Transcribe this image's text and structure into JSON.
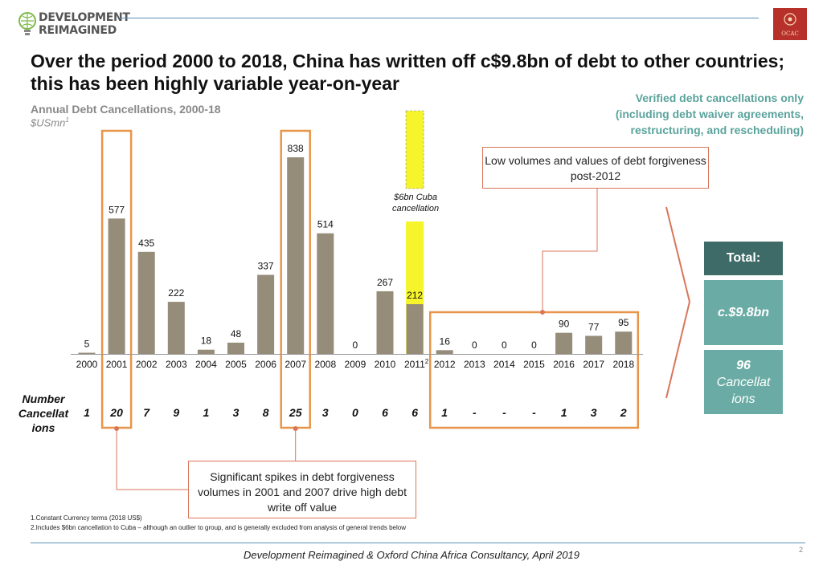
{
  "header": {
    "logo_text": "DEVELOPMENT\nREIMAGINED",
    "badge_text": "OCAC"
  },
  "title": "Over the period 2000 to 2018, China has written off c$9.8bn of debt to other countries; this has been highly variable year-on-year",
  "subtitle": "Annual Debt Cancellations, 2000-18",
  "unit_label": "$USmn",
  "unit_sup": "1",
  "verified_note": "Verified debt cancellations only (including debt waiver agreements, restructuring, and rescheduling)",
  "callouts": {
    "post_2012": "Low volumes and values of debt forgiveness post-2012",
    "spikes": "Significant spikes in debt forgiveness volumes in 2001 and 2007 drive high debt write off value",
    "cuba": "$6bn Cuba cancellation"
  },
  "count_row_label": "Number Cancellat ions",
  "totals": {
    "header": "Total:",
    "value": "c.$9.8bn",
    "count_number": "96",
    "count_label": "Cancellat ions"
  },
  "footnotes": [
    "1.Constant Currency terms (2018 US$)",
    "2.Includes $6bn cancellation to Cuba – although an outlier to group, and is generally excluded from analysis of general trends below"
  ],
  "source": "Development Reimagined & Oxford China Africa Consultancy, April 2019",
  "page_number": "2",
  "colors": {
    "bar": "#958c7a",
    "highlight_box": "#e8954a",
    "cuba": "#f6f42a",
    "callout": "#d9765a",
    "teal": "#6aaca5",
    "dark_teal": "#3e6b68"
  },
  "chart_data": {
    "type": "bar",
    "title": "Annual Debt Cancellations, 2000-18",
    "ylabel": "$USmn",
    "categories": [
      "2000",
      "2001",
      "2002",
      "2003",
      "2004",
      "2005",
      "2006",
      "2007",
      "2008",
      "2009",
      "2010",
      "2011",
      "2012",
      "2013",
      "2014",
      "2015",
      "2016",
      "2017",
      "2018"
    ],
    "category_sup": {
      "2011": "2"
    },
    "values": [
      5,
      577,
      435,
      222,
      18,
      48,
      337,
      838,
      514,
      0,
      267,
      212,
      16,
      0,
      0,
      0,
      90,
      77,
      95
    ],
    "counts": [
      "1",
      "20",
      "7",
      "9",
      "1",
      "3",
      "8",
      "25",
      "3",
      "0",
      "6",
      "6",
      "1",
      "-",
      "-",
      "-",
      "1",
      "3",
      "2"
    ],
    "highlight_years": [
      "2001",
      "2007"
    ],
    "highlight_range": [
      "2012",
      "2018"
    ],
    "ylim": [
      0,
      900
    ],
    "grid": false
  }
}
